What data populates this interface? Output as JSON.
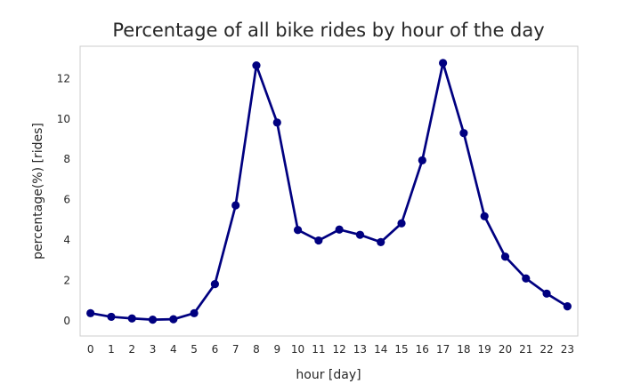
{
  "chart_data": {
    "type": "line",
    "title": "Percentage of all bike rides by hour of the day",
    "xlabel": "hour [day]",
    "ylabel": "percentage(%) [rides]",
    "categories": [
      "0",
      "1",
      "2",
      "3",
      "4",
      "5",
      "6",
      "7",
      "8",
      "9",
      "10",
      "11",
      "12",
      "13",
      "14",
      "15",
      "16",
      "17",
      "18",
      "19",
      "20",
      "21",
      "22",
      "23"
    ],
    "series": [
      {
        "name": "",
        "values": [
          0.38,
          0.2,
          0.12,
          0.06,
          0.08,
          0.38,
          1.82,
          5.72,
          12.65,
          9.82,
          4.5,
          3.98,
          4.52,
          4.26,
          3.9,
          4.83,
          7.95,
          12.77,
          9.3,
          5.18,
          3.18,
          2.1,
          1.35,
          0.72
        ],
        "color": "#000080"
      }
    ],
    "yticks": [
      0,
      2,
      4,
      6,
      8,
      10,
      12
    ],
    "ylim": [
      -0.75,
      13.6
    ],
    "grid": false,
    "legend": "none"
  }
}
